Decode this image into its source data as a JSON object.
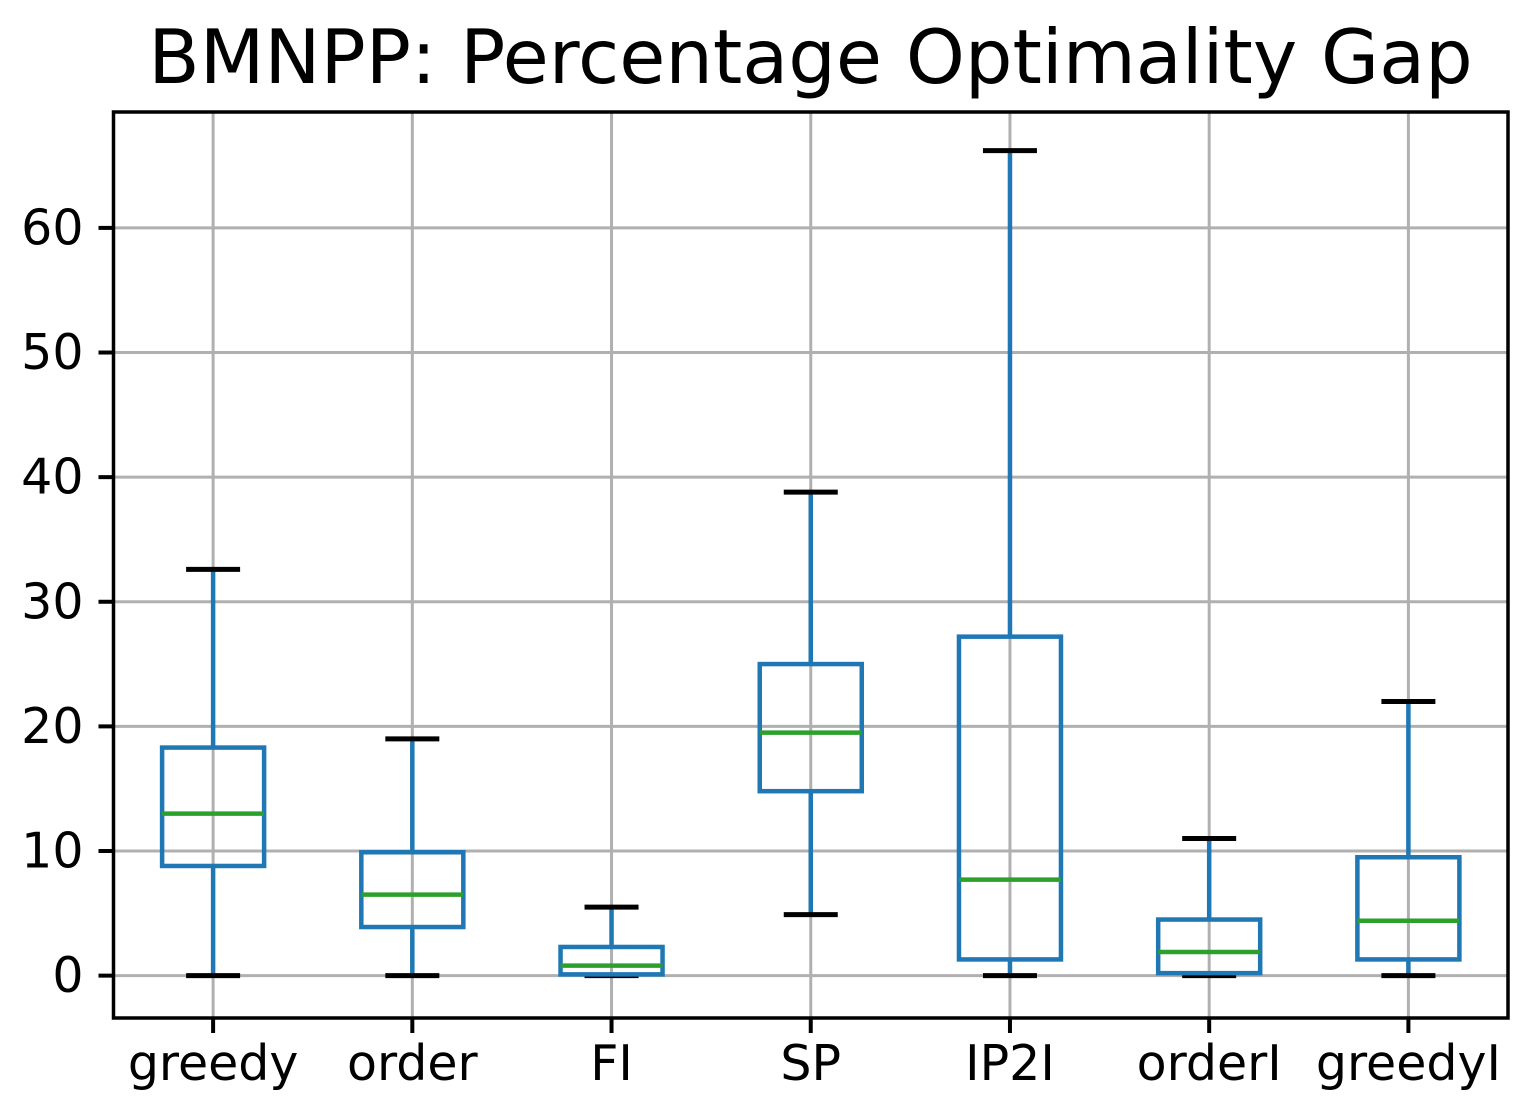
{
  "chart_data": {
    "type": "boxplot",
    "title": "BMNPP: Percentage Optimality Gap",
    "xlabel": "",
    "ylabel": "",
    "categories": [
      "greedy",
      "order",
      "FI",
      "SP",
      "IP2I",
      "orderI",
      "greedyI"
    ],
    "series": [
      {
        "name": "greedy",
        "whisker_low": 0,
        "q1": 8.8,
        "median": 13.0,
        "q3": 18.3,
        "whisker_high": 32.6
      },
      {
        "name": "order",
        "whisker_low": 0,
        "q1": 3.9,
        "median": 6.5,
        "q3": 9.9,
        "whisker_high": 19.0
      },
      {
        "name": "FI",
        "whisker_low": 0,
        "q1": 0.1,
        "median": 0.8,
        "q3": 2.3,
        "whisker_high": 5.5
      },
      {
        "name": "SP",
        "whisker_low": 4.9,
        "q1": 14.8,
        "median": 19.5,
        "q3": 25.0,
        "whisker_high": 38.8
      },
      {
        "name": "IP2I",
        "whisker_low": 0,
        "q1": 1.3,
        "median": 7.7,
        "q3": 27.2,
        "whisker_high": 66.2
      },
      {
        "name": "orderI",
        "whisker_low": 0,
        "q1": 0.2,
        "median": 1.9,
        "q3": 4.5,
        "whisker_high": 11.0
      },
      {
        "name": "greedyI",
        "whisker_low": 0,
        "q1": 1.3,
        "median": 4.4,
        "q3": 9.5,
        "whisker_high": 22.0
      }
    ],
    "y_ticks": [
      0,
      10,
      20,
      30,
      40,
      50,
      60
    ],
    "ylim": [
      -3.4,
      69.3
    ],
    "xlim": [
      0.5,
      7.5
    ],
    "grid": true,
    "legend": "none",
    "colors": {
      "box": "#1f77b4",
      "whisker": "#1f77b4",
      "median": "#2ca02c",
      "cap": "#000000",
      "grid": "#b0b0b0",
      "spine": "#000000",
      "background": "#ffffff"
    }
  }
}
